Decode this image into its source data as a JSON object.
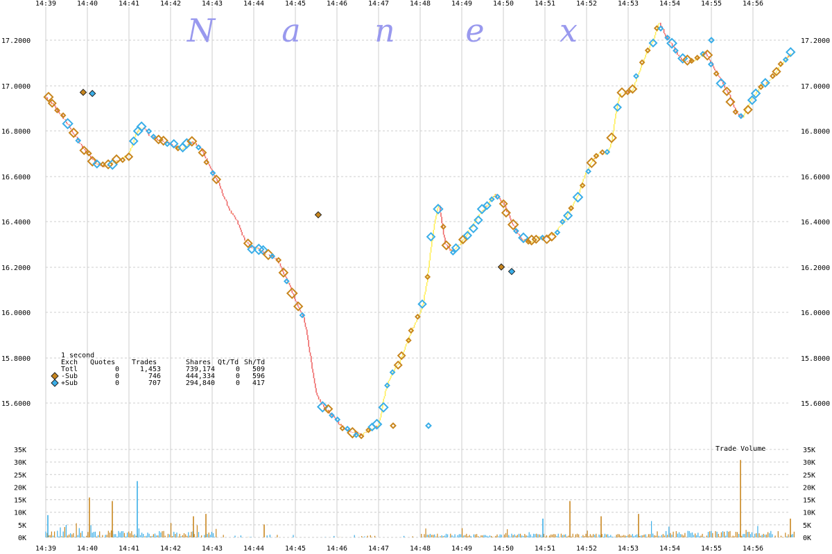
{
  "watermark": [
    "N",
    "a",
    "n",
    "e",
    "x"
  ],
  "chart_data": {
    "type": "scatter",
    "title": "",
    "x_ticks": [
      "14:39",
      "14:40",
      "14:41",
      "14:42",
      "14:43",
      "14:44",
      "14:45",
      "14:46",
      "14:47",
      "14:48",
      "14:49",
      "14:50",
      "14:51",
      "14:52",
      "14:53",
      "14:54",
      "14:55",
      "14:56"
    ],
    "y_ticks": [
      "17.2000",
      "17.0000",
      "16.8000",
      "16.6000",
      "16.4000",
      "16.2000",
      "16.0000",
      "15.8000",
      "15.6000"
    ],
    "ylim": [
      15.43,
      17.3
    ],
    "xlim_minutes": [
      0,
      18
    ],
    "grid": true,
    "volume_label": "Trade Volume",
    "volume_ticks": [
      "35K",
      "30K",
      "25K",
      "20K",
      "15K",
      "10K",
      "5K",
      "0K"
    ],
    "volume_ylim": [
      0,
      37500
    ],
    "colors": {
      "sub": "#c8861e",
      "plus": "#3aaee8",
      "down": "#ee6666",
      "up": "#ffee55",
      "grid": "#cccccc"
    },
    "legend": {
      "interval": "1 second",
      "headers": [
        "Exch",
        "Quotes",
        "Trades",
        "Shares",
        "Qt/Td",
        "Sh/Td"
      ],
      "rows": [
        {
          "name": "Totl",
          "quotes": "0",
          "trades": "1,453",
          "shares": "739,174",
          "qttd": "0",
          "shtd": "509"
        },
        {
          "name": "-Sub",
          "quotes": "0",
          "trades": "746",
          "shares": "444,334",
          "qttd": "0",
          "shtd": "596"
        },
        {
          "name": "+Sub",
          "quotes": "0",
          "trades": "707",
          "shares": "294,840",
          "qttd": "0",
          "shtd": "417"
        }
      ]
    },
    "price_path": [
      [
        0.0,
        16.95
      ],
      [
        0.2,
        16.91
      ],
      [
        0.45,
        16.85
      ],
      [
        0.7,
        16.78
      ],
      [
        0.9,
        16.72
      ],
      [
        1.05,
        16.69
      ],
      [
        1.2,
        16.66
      ],
      [
        1.4,
        16.64
      ],
      [
        1.6,
        16.66
      ],
      [
        1.8,
        16.67
      ],
      [
        2.0,
        16.7
      ],
      [
        2.15,
        16.78
      ],
      [
        2.3,
        16.82
      ],
      [
        2.5,
        16.78
      ],
      [
        2.7,
        16.76
      ],
      [
        2.9,
        16.75
      ],
      [
        3.1,
        16.73
      ],
      [
        3.3,
        16.72
      ],
      [
        3.5,
        16.75
      ],
      [
        3.7,
        16.73
      ],
      [
        3.85,
        16.68
      ],
      [
        4.0,
        16.62
      ],
      [
        4.15,
        16.57
      ],
      [
        4.3,
        16.5
      ],
      [
        4.45,
        16.44
      ],
      [
        4.6,
        16.4
      ],
      [
        4.75,
        16.33
      ],
      [
        4.9,
        16.29
      ],
      [
        5.1,
        16.28
      ],
      [
        5.25,
        16.26
      ],
      [
        5.45,
        16.25
      ],
      [
        5.6,
        16.22
      ],
      [
        5.75,
        16.16
      ],
      [
        5.9,
        16.1
      ],
      [
        6.0,
        16.05
      ],
      [
        6.1,
        16.01
      ],
      [
        6.2,
        15.98
      ],
      [
        6.3,
        15.88
      ],
      [
        6.4,
        15.75
      ],
      [
        6.5,
        15.64
      ],
      [
        6.65,
        15.59
      ],
      [
        6.8,
        15.56
      ],
      [
        6.95,
        15.53
      ],
      [
        7.1,
        15.5
      ],
      [
        7.25,
        15.48
      ],
      [
        7.45,
        15.47
      ],
      [
        7.6,
        15.46
      ],
      [
        7.75,
        15.48
      ],
      [
        8.0,
        15.5
      ],
      [
        8.1,
        15.6
      ],
      [
        8.2,
        15.68
      ],
      [
        8.35,
        15.74
      ],
      [
        8.5,
        15.78
      ],
      [
        8.65,
        15.85
      ],
      [
        8.8,
        15.92
      ],
      [
        8.95,
        15.98
      ],
      [
        9.05,
        16.03
      ],
      [
        9.15,
        16.12
      ],
      [
        9.25,
        16.28
      ],
      [
        9.35,
        16.4
      ],
      [
        9.45,
        16.48
      ],
      [
        9.6,
        16.3
      ],
      [
        9.75,
        16.27
      ],
      [
        9.95,
        16.3
      ],
      [
        10.1,
        16.34
      ],
      [
        10.25,
        16.38
      ],
      [
        10.45,
        16.44
      ],
      [
        10.65,
        16.48
      ],
      [
        10.8,
        16.52
      ],
      [
        11.0,
        16.48
      ],
      [
        11.15,
        16.42
      ],
      [
        11.3,
        16.36
      ],
      [
        11.45,
        16.32
      ],
      [
        11.65,
        16.31
      ],
      [
        11.85,
        16.33
      ],
      [
        12.05,
        16.33
      ],
      [
        12.25,
        16.35
      ],
      [
        12.45,
        16.4
      ],
      [
        12.6,
        16.45
      ],
      [
        12.8,
        16.52
      ],
      [
        12.95,
        16.6
      ],
      [
        13.1,
        16.66
      ],
      [
        13.3,
        16.7
      ],
      [
        13.5,
        16.7
      ],
      [
        13.6,
        16.75
      ],
      [
        13.7,
        16.88
      ],
      [
        13.8,
        16.96
      ],
      [
        13.95,
        16.97
      ],
      [
        14.1,
        16.98
      ],
      [
        14.3,
        17.08
      ],
      [
        14.45,
        17.15
      ],
      [
        14.6,
        17.2
      ],
      [
        14.75,
        17.28
      ],
      [
        14.9,
        17.22
      ],
      [
        15.05,
        17.18
      ],
      [
        15.25,
        17.12
      ],
      [
        15.45,
        17.1
      ],
      [
        15.65,
        17.12
      ],
      [
        15.85,
        17.15
      ],
      [
        16.0,
        17.1
      ],
      [
        16.15,
        17.05
      ],
      [
        16.3,
        17.0
      ],
      [
        16.45,
        16.95
      ],
      [
        16.6,
        16.88
      ],
      [
        16.75,
        16.86
      ],
      [
        16.9,
        16.92
      ],
      [
        17.05,
        16.96
      ],
      [
        17.2,
        17.0
      ],
      [
        17.4,
        17.02
      ],
      [
        17.55,
        17.06
      ],
      [
        17.7,
        17.1
      ],
      [
        17.85,
        17.13
      ],
      [
        18.0,
        17.15
      ]
    ],
    "outliers": [
      {
        "t": 0.9,
        "p": 16.97,
        "series": "-Sub"
      },
      {
        "t": 1.12,
        "p": 16.965,
        "series": "+Sub"
      },
      {
        "t": 6.55,
        "p": 16.43,
        "series": "-Sub"
      },
      {
        "t": 10.95,
        "p": 16.2,
        "series": "-Sub"
      },
      {
        "t": 11.2,
        "p": 16.18,
        "series": "+Sub"
      },
      {
        "t": 16.0,
        "p": 17.2,
        "series": "+Sub"
      },
      {
        "t": 8.35,
        "p": 15.5,
        "series": "-Sub"
      },
      {
        "t": 9.2,
        "p": 15.5,
        "series": "+Sub"
      }
    ],
    "volume_spikes": [
      {
        "t": 0.05,
        "v": 9500,
        "series": "+Sub"
      },
      {
        "t": 1.05,
        "v": 17000,
        "series": "-Sub"
      },
      {
        "t": 1.6,
        "v": 15500,
        "series": "-Sub"
      },
      {
        "t": 2.2,
        "v": 24000,
        "series": "+Sub"
      },
      {
        "t": 3.55,
        "v": 9000,
        "series": "-Sub"
      },
      {
        "t": 3.85,
        "v": 10000,
        "series": "-Sub"
      },
      {
        "t": 5.25,
        "v": 5500,
        "series": "-Sub"
      },
      {
        "t": 11.95,
        "v": 8000,
        "series": "+Sub"
      },
      {
        "t": 12.6,
        "v": 15500,
        "series": "-Sub"
      },
      {
        "t": 13.35,
        "v": 9000,
        "series": "-Sub"
      },
      {
        "t": 14.25,
        "v": 10000,
        "series": "-Sub"
      },
      {
        "t": 16.7,
        "v": 33000,
        "series": "-Sub"
      },
      {
        "t": 17.9,
        "v": 8000,
        "series": "-Sub"
      }
    ]
  }
}
